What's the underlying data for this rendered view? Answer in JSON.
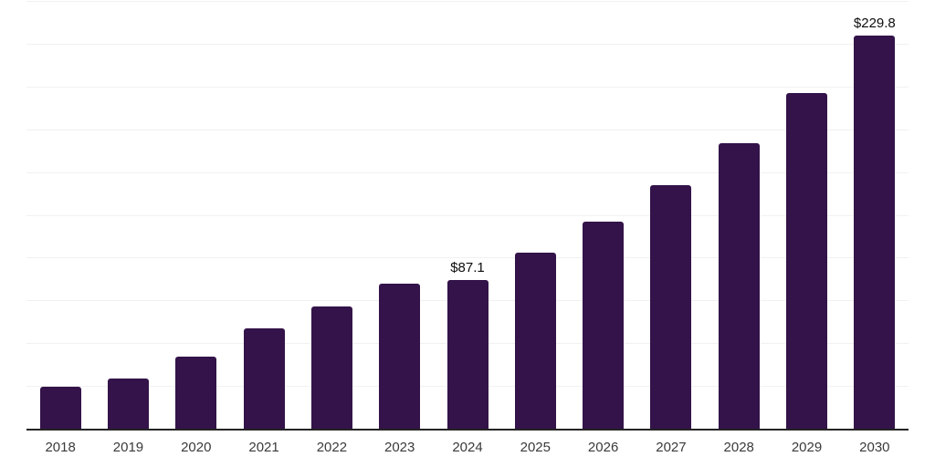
{
  "chart_data": {
    "type": "bar",
    "title": "",
    "xlabel": "",
    "ylabel": "",
    "categories": [
      "2018",
      "2019",
      "2020",
      "2021",
      "2022",
      "2023",
      "2024",
      "2025",
      "2026",
      "2027",
      "2028",
      "2029",
      "2030"
    ],
    "values": [
      24.3,
      29.3,
      42.2,
      58.6,
      71.4,
      84.8,
      87.1,
      102.8,
      121.2,
      142.2,
      167.0,
      196.3,
      229.8
    ],
    "point_labels": [
      "",
      "",
      "",
      "",
      "",
      "",
      "$87.1",
      "",
      "",
      "",
      "",
      "",
      "$229.8"
    ],
    "ylim": [
      0,
      250
    ],
    "y_gridline_step": 25,
    "grid": "horizontal",
    "y_tick_labels_shown": false,
    "legend": "none",
    "colors": {
      "bar": "#331349",
      "gridline": "#f1f1f1",
      "axis_line": "#242424",
      "tick_label": "#3a3a3a",
      "data_label": "#0d0d0d",
      "background": "#ffffff"
    }
  }
}
